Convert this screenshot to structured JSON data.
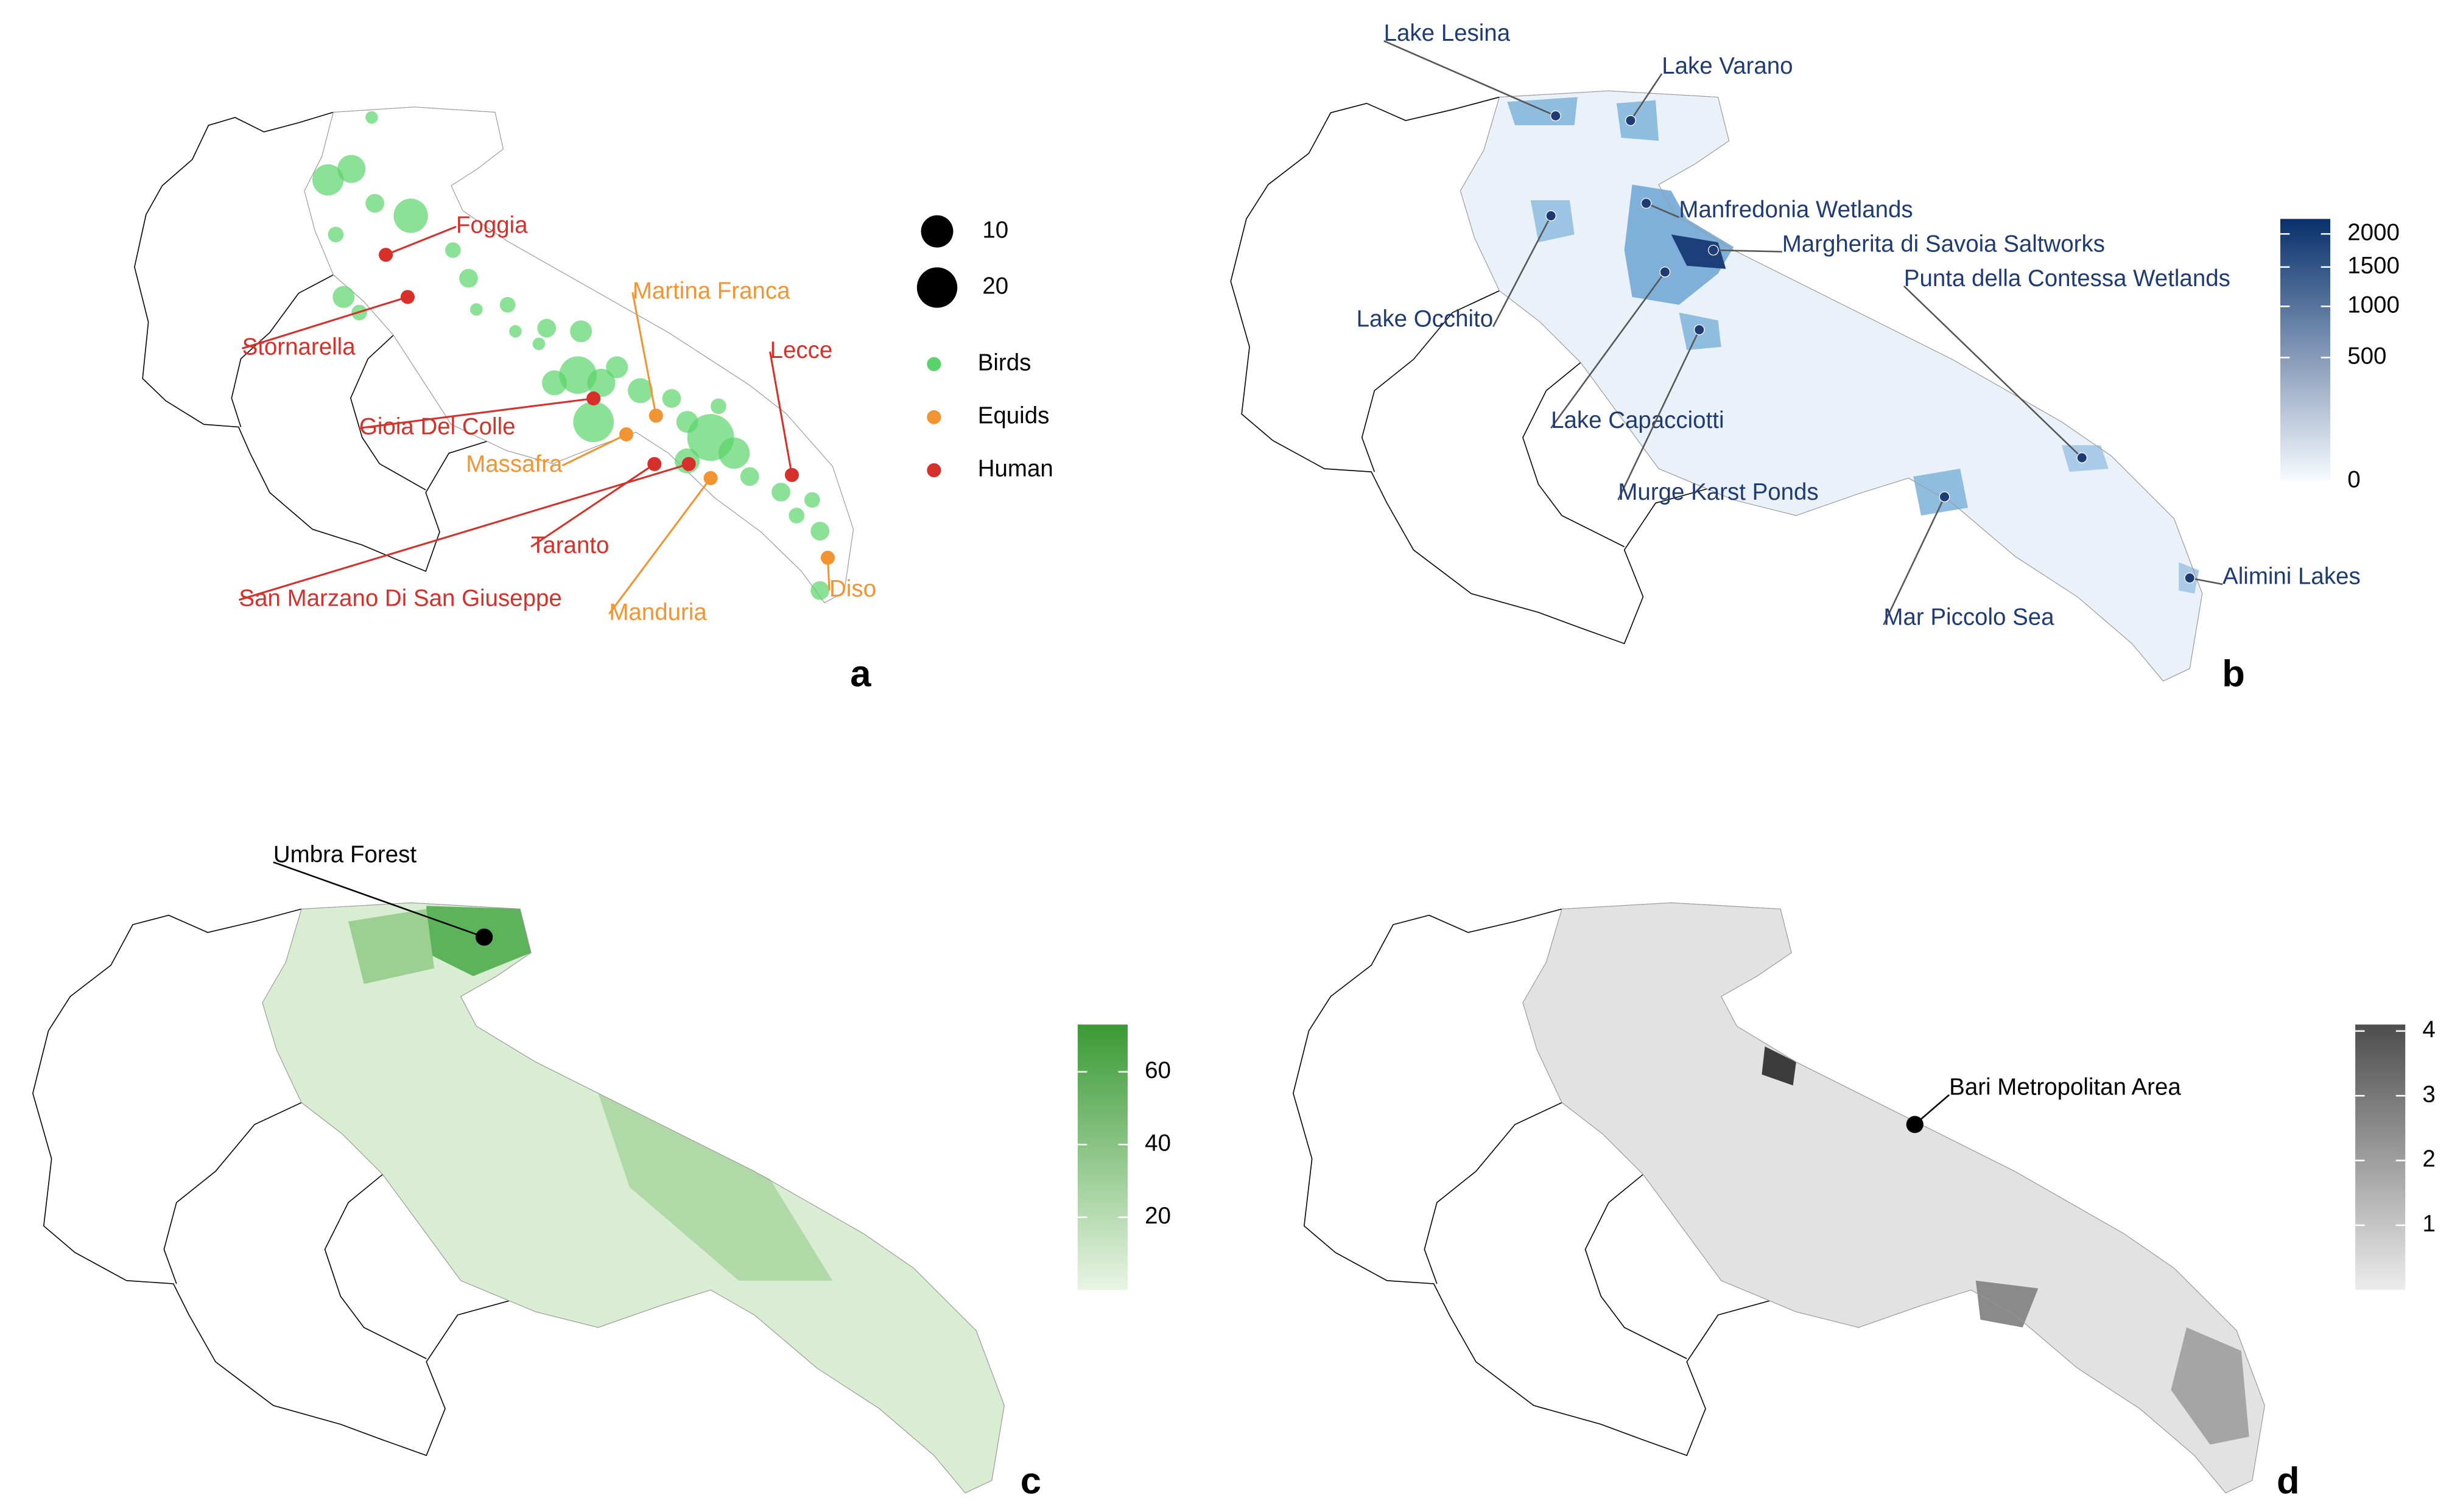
{
  "panels": [
    {
      "label": "a",
      "size_legend": {
        "values": [
          10,
          20
        ]
      },
      "color_legend": [
        {
          "name": "Birds",
          "color": "#5ad46a"
        },
        {
          "name": "Equids",
          "color": "#f39433"
        },
        {
          "name": "Human",
          "color": "#d7302a"
        }
      ],
      "annotations": [
        {
          "text": "Foggia",
          "group": 2
        },
        {
          "text": "Stornarella",
          "group": 2
        },
        {
          "text": "Gioia Del Colle",
          "group": 2
        },
        {
          "text": "Martina Franca",
          "group": 1
        },
        {
          "text": "Lecce",
          "group": 2
        },
        {
          "text": "Massafra",
          "group": 1
        },
        {
          "text": "Taranto",
          "group": 2
        },
        {
          "text": "San Marzano Di San Giuseppe",
          "group": 2
        },
        {
          "text": "Manduria",
          "group": 1
        },
        {
          "text": "Diso",
          "group": 1
        }
      ]
    },
    {
      "label": "b",
      "label_color": "#1f3b73",
      "colorbar": {
        "lim": [
          0,
          2250
        ],
        "ticks": [
          0,
          500,
          1000,
          1500,
          2000
        ],
        "scale": "sqrt",
        "colors": [
          "#f7fbff",
          "#08306b"
        ]
      },
      "annotations": [
        {
          "text": "Lake Lesina"
        },
        {
          "text": "Lake Varano"
        },
        {
          "text": "Manfredonia Wetlands"
        },
        {
          "text": "Margherita di Savoia Saltworks"
        },
        {
          "text": "Punta della Contessa Wetlands"
        },
        {
          "text": "Lake Occhito"
        },
        {
          "text": "Lake Capacciotti"
        },
        {
          "text": "Murge Karst Ponds"
        },
        {
          "text": "Mar Piccolo Sea"
        },
        {
          "text": "Alimini Lakes"
        }
      ]
    },
    {
      "label": "c",
      "label_color": "#000000",
      "colorbar": {
        "lim": [
          0,
          73
        ],
        "ticks": [
          20,
          40,
          60
        ],
        "scale": "linear",
        "colors": [
          "#e8f5e3",
          "#3a9a35"
        ]
      },
      "annotations": [
        {
          "text": "Umbra Forest"
        }
      ]
    },
    {
      "label": "d",
      "label_color": "#000000",
      "colorbar": {
        "lim": [
          0,
          4.1
        ],
        "ticks": [
          1,
          2,
          3,
          4
        ],
        "scale": "linear",
        "colors": [
          "#ececec",
          "#4d4d4d"
        ]
      },
      "annotations": [
        {
          "text": "Bari Metropolitan Area"
        }
      ]
    }
  ]
}
